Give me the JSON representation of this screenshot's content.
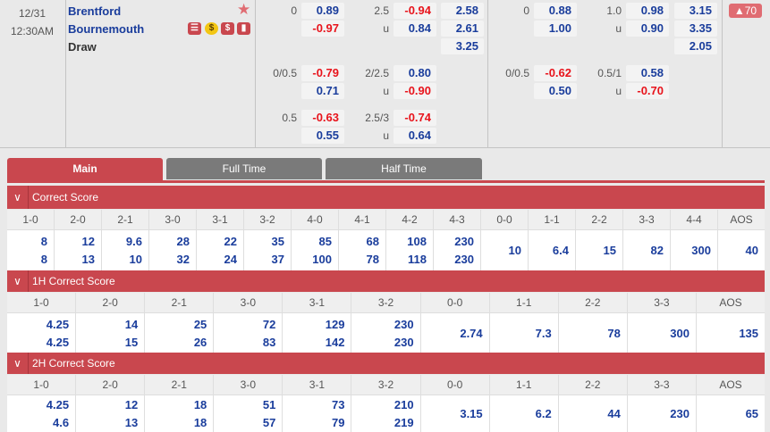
{
  "match": {
    "date": "12/31",
    "time": "12:30AM",
    "home": "Brentford",
    "away": "Bournemouth",
    "draw": "Draw",
    "badge": "▲70"
  },
  "icons": [
    "star-icon",
    "scroll-icon",
    "coin-icon",
    "dollar-icon",
    "stats-icon"
  ],
  "colors": {
    "accent": "#c9474e",
    "odds_blue": "#1a3d9c",
    "odds_red": "#e8141c",
    "tab_gray": "#7a7a7a"
  },
  "ft": {
    "hdp": [
      {
        "line": "0",
        "home": "0.89",
        "away": "-0.97"
      },
      {
        "line": "0/0.5",
        "home": "-0.79",
        "away": "0.71"
      },
      {
        "line": "0.5",
        "home": "-0.63",
        "away": "0.55"
      }
    ],
    "ou": [
      {
        "line": "2.5",
        "u": "u",
        "over": "-0.94",
        "under": "0.84"
      },
      {
        "line": "2/2.5",
        "u": "u",
        "over": "0.80",
        "under": "-0.90"
      },
      {
        "line": "2.5/3",
        "u": "u",
        "over": "-0.74",
        "under": "0.64"
      }
    ],
    "x12": [
      "2.58",
      "2.61",
      "3.25"
    ]
  },
  "ht": {
    "hdp": [
      {
        "line": "0",
        "home": "0.88",
        "away": "1.00"
      },
      {
        "line": "0/0.5",
        "home": "-0.62",
        "away": "0.50"
      }
    ],
    "ou": [
      {
        "line": "1.0",
        "u": "u",
        "over": "0.98",
        "under": "0.90"
      },
      {
        "line": "0.5/1",
        "u": "u",
        "over": "0.58",
        "under": "-0.70"
      }
    ],
    "x12": [
      "3.15",
      "3.35",
      "2.05"
    ]
  },
  "tabs": [
    "Main",
    "Full Time",
    "Half Time"
  ],
  "sections": [
    {
      "title": "Correct Score",
      "cols": [
        {
          "h": "1-0",
          "v": [
            "8",
            "8"
          ]
        },
        {
          "h": "2-0",
          "v": [
            "12",
            "13"
          ]
        },
        {
          "h": "2-1",
          "v": [
            "9.6",
            "10"
          ]
        },
        {
          "h": "3-0",
          "v": [
            "28",
            "32"
          ]
        },
        {
          "h": "3-1",
          "v": [
            "22",
            "24"
          ]
        },
        {
          "h": "3-2",
          "v": [
            "35",
            "37"
          ]
        },
        {
          "h": "4-0",
          "v": [
            "85",
            "100"
          ]
        },
        {
          "h": "4-1",
          "v": [
            "68",
            "78"
          ]
        },
        {
          "h": "4-2",
          "v": [
            "108",
            "118"
          ]
        },
        {
          "h": "4-3",
          "v": [
            "230",
            "230"
          ]
        },
        {
          "h": "0-0",
          "v": [
            "10"
          ]
        },
        {
          "h": "1-1",
          "v": [
            "6.4"
          ]
        },
        {
          "h": "2-2",
          "v": [
            "15"
          ]
        },
        {
          "h": "3-3",
          "v": [
            "82"
          ]
        },
        {
          "h": "4-4",
          "v": [
            "300"
          ]
        },
        {
          "h": "AOS",
          "v": [
            "40"
          ]
        }
      ]
    },
    {
      "title": "1H Correct Score",
      "cols": [
        {
          "h": "1-0",
          "v": [
            "4.25",
            "4.25"
          ]
        },
        {
          "h": "2-0",
          "v": [
            "14",
            "15"
          ]
        },
        {
          "h": "2-1",
          "v": [
            "25",
            "26"
          ]
        },
        {
          "h": "3-0",
          "v": [
            "72",
            "83"
          ]
        },
        {
          "h": "3-1",
          "v": [
            "129",
            "142"
          ]
        },
        {
          "h": "3-2",
          "v": [
            "230",
            "230"
          ]
        },
        {
          "h": "0-0",
          "v": [
            "2.74"
          ]
        },
        {
          "h": "1-1",
          "v": [
            "7.3"
          ]
        },
        {
          "h": "2-2",
          "v": [
            "78"
          ]
        },
        {
          "h": "3-3",
          "v": [
            "300"
          ]
        },
        {
          "h": "AOS",
          "v": [
            "135"
          ]
        }
      ]
    },
    {
      "title": "2H Correct Score",
      "cols": [
        {
          "h": "1-0",
          "v": [
            "4.25",
            "4.6"
          ]
        },
        {
          "h": "2-0",
          "v": [
            "12",
            "13"
          ]
        },
        {
          "h": "2-1",
          "v": [
            "18",
            "18"
          ]
        },
        {
          "h": "3-0",
          "v": [
            "51",
            "57"
          ]
        },
        {
          "h": "3-1",
          "v": [
            "73",
            "79"
          ]
        },
        {
          "h": "3-2",
          "v": [
            "210",
            "219"
          ]
        },
        {
          "h": "0-0",
          "v": [
            "3.15"
          ]
        },
        {
          "h": "1-1",
          "v": [
            "6.2"
          ]
        },
        {
          "h": "2-2",
          "v": [
            "44"
          ]
        },
        {
          "h": "3-3",
          "v": [
            "230"
          ]
        },
        {
          "h": "AOS",
          "v": [
            "65"
          ]
        }
      ]
    }
  ]
}
